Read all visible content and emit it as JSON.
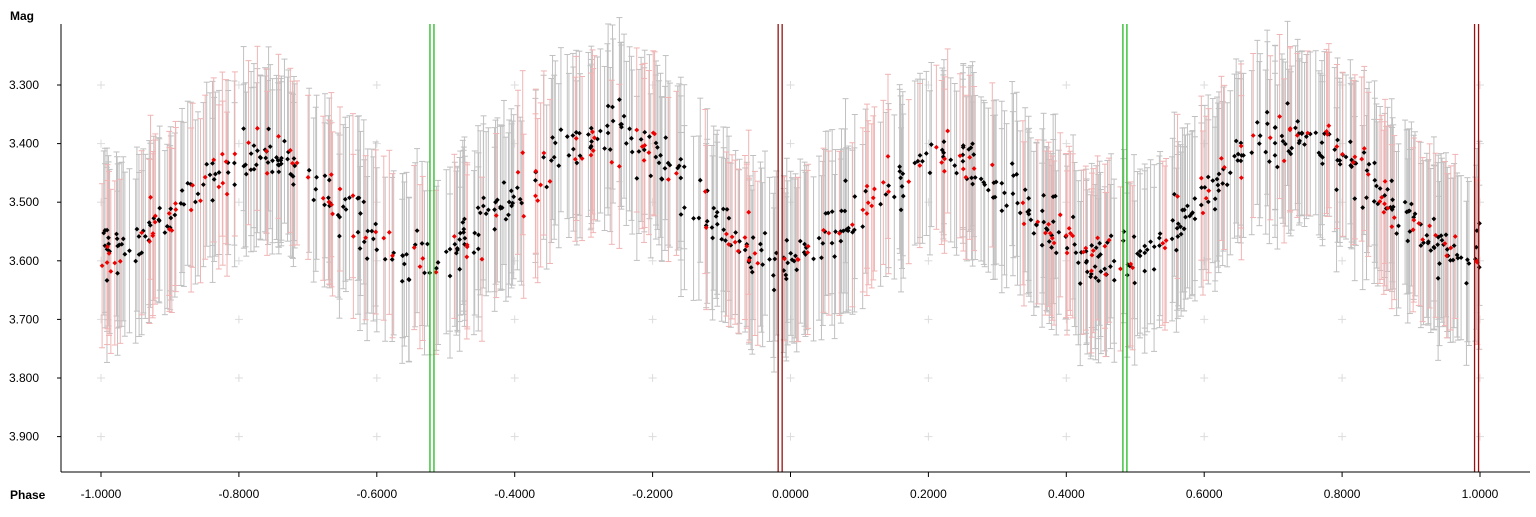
{
  "chart_data": {
    "type": "scatter",
    "ylabel": "Mag",
    "xlabel": "Phase",
    "xlim": [
      -1.0,
      1.0
    ],
    "ylim": [
      3.96,
      3.22
    ],
    "y_inverted": true,
    "grid": "plus markers",
    "legend": "none",
    "x_ticks": [
      -1.0,
      -0.8,
      -0.6,
      -0.4,
      -0.2,
      0.0,
      0.2,
      0.4,
      0.6,
      0.8,
      1.0
    ],
    "x_tick_labels": [
      "-1.0000",
      "-0.8000",
      "-0.6000",
      "-0.4000",
      "-0.2000",
      "0.0000",
      "0.2000",
      "0.4000",
      "0.6000",
      "0.8000",
      "1.0000"
    ],
    "y_ticks": [
      3.3,
      3.4,
      3.5,
      3.6,
      3.7,
      3.8,
      3.9
    ],
    "y_tick_labels": [
      "3.300",
      "3.400",
      "3.500",
      "3.600",
      "3.700",
      "3.800",
      "3.900"
    ],
    "series": [
      {
        "color": "#000000",
        "errorbar_color": "#c0c0c0",
        "error": 0.14,
        "point_count": 620
      },
      {
        "color": "#ee0000",
        "errorbar_color": "#f0b4b4",
        "error": 0.14,
        "point_count": 210
      }
    ],
    "model": {
      "mean": 3.5,
      "amplitude": 0.095,
      "minima": [
        -0.52,
        -0.01,
        0.49,
        0.99
      ],
      "maxima": [
        -0.77,
        -0.27,
        0.23,
        0.73
      ],
      "scatter": 0.035
    },
    "markers": [
      {
        "x": -0.52,
        "color": "#22bb22"
      },
      {
        "x": 0.485,
        "color": "#22bb22"
      },
      {
        "x": -0.015,
        "color": "#991111"
      },
      {
        "x": 0.995,
        "color": "#991111"
      }
    ]
  }
}
